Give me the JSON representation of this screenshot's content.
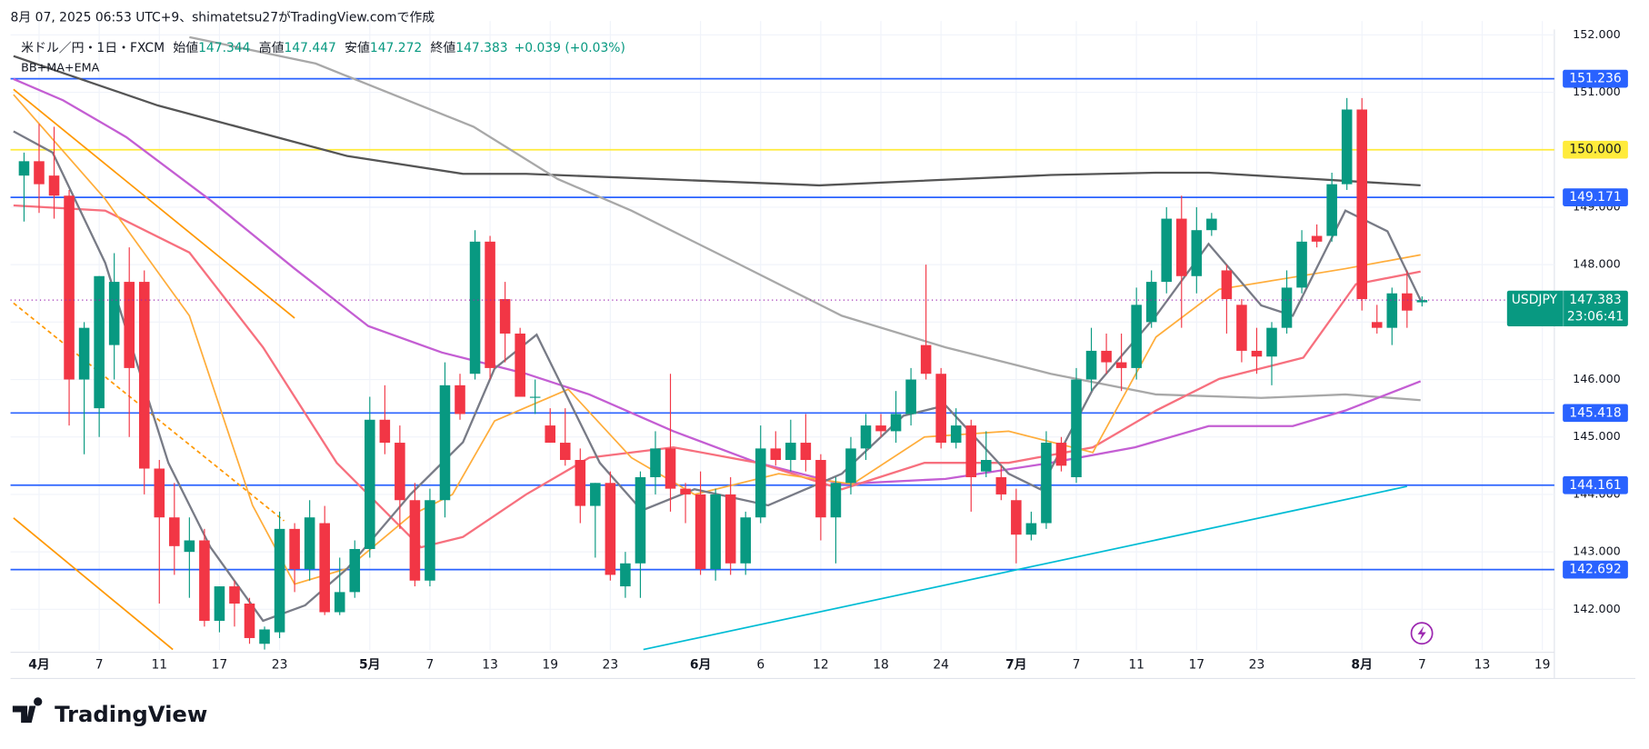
{
  "header": "8月 07, 2025 06:53 UTC+9、shimatetsu27がTradingView.comで作成",
  "brand": "TradingView",
  "chart_data": {
    "type": "candlestick",
    "symbol": "米ドル／円・1日・FXCM",
    "ticker": "USDJPY",
    "indicator": "BB+MA+EMA",
    "open_label": "始値",
    "high_label": "高値",
    "low_label": "安値",
    "close_label": "終値",
    "change": "+0.039 (+0.03%)",
    "countdown": "23:06:41",
    "up_color": "#089981",
    "down_color": "#f23645",
    "xlim": [
      -0.9,
      101.8
    ],
    "ylim": [
      141.29,
      152.24
    ],
    "yticks": [
      {
        "value": 142,
        "label": "142.000"
      },
      {
        "value": 143,
        "label": "143.000"
      },
      {
        "value": 144,
        "label": "144.000"
      },
      {
        "value": 145,
        "label": "145.000"
      },
      {
        "value": 146,
        "label": "146.000"
      },
      {
        "value": 147,
        "label": "147.000"
      },
      {
        "value": 148,
        "label": "148.000"
      },
      {
        "value": 149,
        "label": "149.000"
      },
      {
        "value": 150,
        "label": "150.000"
      },
      {
        "value": 151,
        "label": "151.000"
      },
      {
        "value": 152,
        "label": "152.000"
      }
    ],
    "xticks": [
      {
        "value": 1,
        "label": "4月"
      },
      {
        "value": 5,
        "label": "7"
      },
      {
        "value": 9,
        "label": "11"
      },
      {
        "value": 13,
        "label": "17"
      },
      {
        "value": 17,
        "label": "23"
      },
      {
        "value": 23,
        "label": "5月"
      },
      {
        "value": 27,
        "label": "7"
      },
      {
        "value": 31,
        "label": "13"
      },
      {
        "value": 35,
        "label": "19"
      },
      {
        "value": 39,
        "label": "23"
      },
      {
        "value": 45,
        "label": "6月"
      },
      {
        "value": 49,
        "label": "6"
      },
      {
        "value": 53,
        "label": "12"
      },
      {
        "value": 57,
        "label": "18"
      },
      {
        "value": 61,
        "label": "24"
      },
      {
        "value": 66,
        "label": "7月"
      },
      {
        "value": 70,
        "label": "7"
      },
      {
        "value": 74,
        "label": "11"
      },
      {
        "value": 78,
        "label": "17"
      },
      {
        "value": 82,
        "label": "23"
      },
      {
        "value": 89,
        "label": "8月"
      },
      {
        "value": 93,
        "label": "7"
      },
      {
        "value": 97,
        "label": "13"
      },
      {
        "value": 101,
        "label": "19"
      }
    ],
    "grid": true,
    "candles": {
      "x": [
        0,
        1,
        2,
        3,
        4,
        5,
        6,
        7,
        8,
        9,
        10,
        11,
        12,
        13,
        14,
        15,
        16,
        17,
        18,
        19,
        20,
        21,
        22,
        23,
        24,
        25,
        26,
        27,
        28,
        29,
        30,
        31,
        32,
        33,
        34,
        35,
        36,
        37,
        38,
        39,
        40,
        41,
        42,
        43,
        44,
        45,
        46,
        47,
        48,
        49,
        50,
        51,
        52,
        53,
        54,
        55,
        56,
        57,
        58,
        59,
        60,
        61,
        62,
        63,
        64,
        65,
        66,
        67,
        68,
        69,
        70,
        71,
        72,
        73,
        74,
        75,
        76,
        77,
        78,
        79,
        80,
        81,
        82,
        83,
        84,
        85,
        86,
        87,
        88,
        89,
        90,
        91,
        92,
        93
      ],
      "open": [
        149.55,
        149.8,
        149.55,
        149.2,
        146.0,
        145.5,
        146.6,
        147.7,
        147.7,
        144.45,
        143.6,
        143.0,
        143.2,
        141.8,
        142.4,
        142.1,
        141.4,
        141.6,
        143.4,
        142.7,
        143.5,
        141.95,
        142.3,
        143.05,
        145.3,
        144.9,
        143.9,
        142.5,
        143.9,
        145.9,
        146.1,
        148.4,
        147.4,
        146.8,
        145.7,
        145.2,
        144.9,
        144.6,
        143.8,
        144.2,
        142.4,
        142.8,
        144.3,
        144.8,
        144.1,
        144.0,
        142.7,
        144.0,
        142.8,
        143.6,
        144.8,
        144.6,
        144.9,
        144.6,
        143.6,
        144.2,
        144.8,
        145.2,
        145.1,
        145.4,
        146.6,
        146.1,
        144.9,
        145.2,
        144.4,
        144.3,
        143.9,
        143.3,
        143.5,
        144.9,
        144.3,
        146.0,
        146.5,
        146.3,
        146.2,
        147.0,
        147.7,
        148.8,
        147.8,
        148.6,
        147.9,
        147.3,
        146.5,
        146.4,
        146.9,
        147.6,
        148.5,
        148.5,
        149.4,
        150.7,
        147.0,
        146.9,
        147.5,
        147.344
      ],
      "high": [
        149.95,
        150.45,
        150.4,
        149.3,
        147.0,
        147.8,
        148.2,
        148.3,
        147.9,
        144.6,
        144.2,
        143.6,
        143.4,
        142.4,
        142.5,
        142.2,
        141.7,
        143.7,
        143.5,
        143.9,
        143.8,
        142.9,
        143.2,
        145.7,
        145.9,
        145.2,
        144.2,
        144.1,
        146.3,
        146.1,
        148.6,
        148.5,
        147.7,
        146.9,
        146.0,
        145.5,
        145.5,
        144.8,
        144.2,
        144.4,
        143.0,
        144.4,
        145.1,
        146.1,
        144.2,
        144.4,
        144.1,
        144.3,
        143.7,
        145.2,
        145.1,
        145.3,
        145.4,
        144.7,
        144.3,
        145.0,
        145.4,
        145.4,
        145.8,
        146.2,
        148.0,
        146.2,
        145.5,
        145.3,
        145.1,
        144.5,
        144.1,
        143.7,
        145.1,
        145.0,
        146.2,
        146.9,
        146.8,
        146.8,
        147.6,
        147.9,
        149.0,
        149.2,
        149.0,
        148.9,
        148.0,
        147.4,
        146.9,
        147.0,
        147.9,
        148.6,
        148.7,
        149.6,
        150.9,
        150.9,
        147.3,
        147.6,
        147.9,
        147.447
      ],
      "low": [
        148.75,
        148.9,
        148.8,
        145.2,
        144.7,
        145.0,
        146.0,
        145.0,
        144.0,
        142.1,
        142.6,
        142.2,
        141.7,
        141.6,
        141.7,
        141.4,
        141.3,
        141.5,
        142.3,
        142.5,
        141.9,
        141.9,
        142.2,
        142.9,
        144.7,
        143.4,
        142.4,
        142.4,
        143.6,
        145.3,
        146.0,
        146.0,
        146.3,
        145.7,
        145.4,
        144.9,
        144.5,
        143.5,
        142.9,
        142.5,
        142.2,
        142.2,
        144.0,
        143.7,
        143.5,
        142.6,
        142.5,
        142.6,
        142.6,
        143.5,
        144.5,
        144.4,
        144.4,
        143.2,
        142.8,
        144.0,
        144.6,
        145.0,
        144.9,
        145.2,
        146.0,
        144.8,
        144.8,
        143.7,
        144.3,
        143.9,
        142.8,
        143.2,
        143.4,
        144.4,
        144.2,
        145.8,
        146.1,
        145.8,
        146.0,
        146.9,
        147.5,
        146.9,
        147.5,
        148.5,
        146.8,
        146.3,
        146.1,
        145.9,
        146.8,
        147.5,
        148.3,
        148.4,
        149.3,
        147.2,
        146.8,
        146.6,
        146.9,
        147.272
      ],
      "close": [
        149.8,
        149.4,
        149.2,
        146.0,
        146.9,
        147.8,
        147.7,
        146.2,
        144.45,
        143.6,
        143.1,
        143.2,
        141.8,
        142.4,
        142.1,
        141.5,
        141.65,
        143.4,
        142.7,
        143.6,
        141.95,
        142.3,
        143.05,
        145.3,
        144.9,
        143.9,
        142.5,
        143.9,
        145.9,
        145.4,
        148.4,
        146.2,
        146.8,
        145.7,
        145.7,
        144.9,
        144.6,
        143.8,
        144.2,
        142.6,
        142.8,
        144.3,
        144.8,
        144.1,
        144.0,
        142.7,
        144.0,
        142.8,
        143.6,
        144.8,
        144.6,
        144.9,
        144.6,
        143.6,
        144.2,
        144.8,
        145.2,
        145.1,
        145.4,
        146.0,
        146.1,
        144.9,
        145.2,
        144.3,
        144.6,
        144.0,
        143.3,
        143.5,
        144.9,
        144.5,
        146.0,
        146.5,
        146.3,
        146.2,
        147.3,
        147.7,
        148.8,
        147.8,
        148.6,
        148.8,
        147.4,
        146.5,
        146.4,
        146.9,
        147.6,
        148.4,
        148.4,
        149.4,
        150.7,
        147.4,
        146.9,
        147.5,
        147.2,
        147.383
      ]
    },
    "series": [
      {
        "color": "#555555",
        "width": 2,
        "x": [
          -0.7,
          8.9,
          21.5,
          29.2,
          33.4,
          52.9,
          68.3,
          75.3,
          78.8,
          92.9
        ],
        "values": [
          151.63,
          150.77,
          149.89,
          149.58,
          149.58,
          149.38,
          149.56,
          149.6,
          149.6,
          149.38
        ]
      },
      {
        "color": "#a8a8a8",
        "width": 2,
        "x": [
          11.0,
          19.4,
          29.9,
          35.5,
          40.4,
          47.4,
          54.4,
          61.3,
          68.3,
          75.3,
          82.3,
          87.9,
          92.9
        ],
        "values": [
          151.96,
          151.5,
          150.4,
          149.49,
          148.94,
          148.03,
          147.11,
          146.56,
          146.1,
          145.74,
          145.68,
          145.74,
          145.64
        ]
      },
      {
        "color": "#c45ed3",
        "width": 2,
        "x": [
          -0.7,
          2.6,
          6.8,
          12.4,
          18.0,
          22.9,
          27.8,
          33.4,
          37.6,
          43.2,
          48.8,
          54.4,
          61.3,
          68.3,
          73.9,
          78.8,
          84.4,
          87.9,
          92.9
        ],
        "values": [
          151.23,
          150.86,
          150.22,
          149.12,
          147.93,
          146.93,
          146.47,
          146.1,
          145.74,
          145.1,
          144.55,
          144.18,
          144.27,
          144.55,
          144.82,
          145.19,
          145.19,
          145.46,
          145.97
        ]
      },
      {
        "color": "#f7707e",
        "width": 2,
        "x": [
          -0.7,
          5.4,
          11.0,
          15.9,
          20.8,
          26.4,
          29.2,
          33.4,
          37.6,
          43.2,
          48.8,
          54.4,
          59.9,
          65.5,
          71.1,
          75.3,
          79.5,
          85.1,
          88.6,
          92.9
        ],
        "values": [
          149.03,
          148.94,
          148.21,
          146.56,
          144.55,
          143.08,
          143.26,
          144.0,
          144.64,
          144.82,
          144.55,
          144.09,
          144.55,
          144.55,
          144.82,
          145.46,
          146.01,
          146.38,
          147.66,
          147.88
        ]
      },
      {
        "color": "#ffad3b",
        "width": 1.5,
        "x": [
          -0.7,
          5.4,
          11.0,
          15.2,
          18.0,
          21.5,
          25.7,
          28.5,
          31.3,
          36.2,
          40.4,
          44.6,
          50.2,
          55.1,
          59.9,
          65.5,
          71.1,
          75.3,
          79.5,
          83.7,
          87.9,
          92.9
        ],
        "values": [
          150.96,
          149.14,
          147.11,
          143.81,
          142.44,
          142.71,
          143.63,
          144.0,
          145.28,
          145.83,
          144.64,
          144.0,
          144.36,
          144.18,
          145.0,
          145.1,
          144.73,
          146.74,
          147.57,
          147.75,
          147.93,
          148.17
        ]
      },
      {
        "color": "#787b86",
        "width": 2,
        "x": [
          -0.7,
          1.9,
          5.4,
          9.6,
          12.4,
          15.9,
          18.7,
          21.5,
          25.7,
          29.2,
          31.3,
          34.1,
          38.3,
          41.1,
          44.6,
          49.5,
          54.4,
          58.5,
          61.3,
          65.5,
          67.6,
          71.1,
          75.3,
          78.8,
          82.3,
          84.4,
          87.9,
          90.7,
          92.9
        ],
        "values": [
          150.32,
          149.95,
          148.03,
          144.55,
          143.08,
          141.8,
          142.07,
          142.71,
          144.0,
          144.91,
          146.19,
          146.78,
          144.55,
          143.72,
          144.09,
          143.81,
          144.36,
          145.37,
          145.55,
          144.36,
          144.09,
          145.83,
          147.11,
          148.36,
          147.29,
          147.11,
          148.94,
          148.58,
          147.38
        ]
      }
    ],
    "trendlines": [
      {
        "color": "#ff9800",
        "dash": false,
        "x": [
          -0.7,
          18.0
        ],
        "values": [
          151.05,
          147.07
        ]
      },
      {
        "color": "#ff9800",
        "dash": false,
        "x": [
          -0.7,
          9.9
        ],
        "values": [
          143.59,
          141.3
        ]
      },
      {
        "color": "#ff9800",
        "dash": true,
        "x": [
          -0.7,
          17.3
        ],
        "values": [
          147.33,
          143.54
        ]
      },
      {
        "color": "#00bcd4",
        "dash": false,
        "x": [
          41.2,
          92.0
        ],
        "values": [
          141.3,
          144.14
        ]
      }
    ],
    "levels": [
      {
        "value": 151.236,
        "color": "#2962ff",
        "text_color": "#ffffff"
      },
      {
        "value": 150,
        "label": "150.000",
        "color": "#ffeb3b",
        "text_color": "#131722"
      },
      {
        "value": 149.171,
        "color": "#2962ff",
        "text_color": "#ffffff"
      },
      {
        "value": 145.418,
        "color": "#2962ff",
        "text_color": "#ffffff"
      },
      {
        "value": 144.161,
        "color": "#2962ff",
        "text_color": "#ffffff"
      },
      {
        "value": 142.692,
        "color": "#2962ff",
        "text_color": "#ffffff"
      }
    ]
  }
}
